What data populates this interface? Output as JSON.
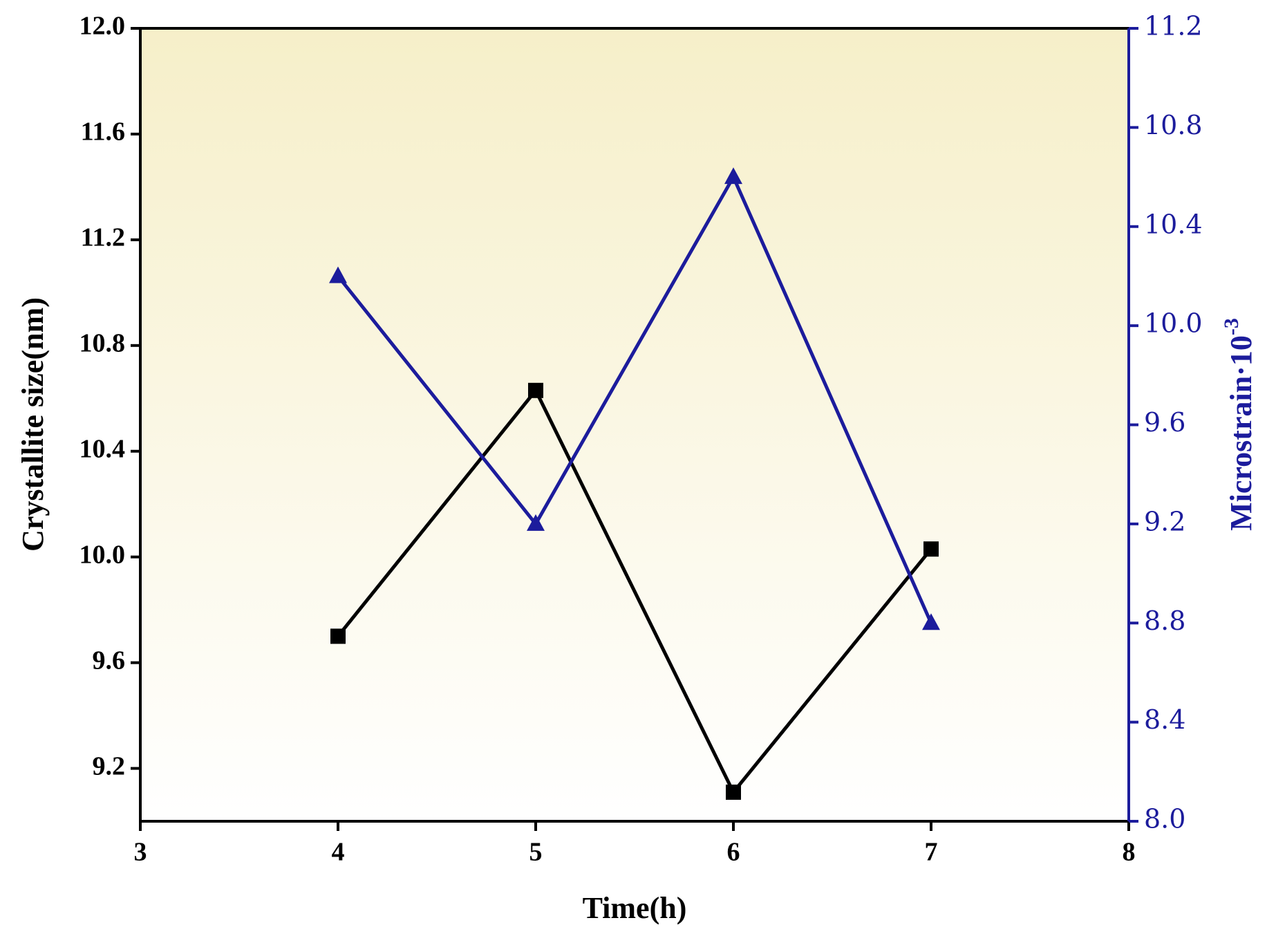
{
  "chart_data": {
    "type": "line",
    "xlabel": "Time(h)",
    "ylabel": "Crystallite size(nm)",
    "y2label": "Microstrain·10",
    "y2label_exponent": "-3",
    "xlim": [
      3,
      8
    ],
    "xticks": [
      3,
      4,
      5,
      6,
      7,
      8
    ],
    "ylim": [
      9.0,
      12.0
    ],
    "yticks": [
      9.2,
      9.6,
      {
        "value": 10,
        "label": "10.0"
      },
      10.4,
      10.8,
      11.2,
      11.6,
      {
        "value": 12,
        "label": "12.0"
      }
    ],
    "y2lim": [
      8.0,
      11.2
    ],
    "y2ticks": [
      {
        "value": 8,
        "label": "8.0"
      },
      8.4,
      8.8,
      9.2,
      9.6,
      {
        "value": 10,
        "label": "10.0"
      },
      10.4,
      10.8,
      11.2
    ],
    "x": [
      4,
      5,
      6,
      7
    ],
    "series": [
      {
        "name": "Crystallite size",
        "color": "#000000",
        "marker": "square",
        "values": [
          9.7,
          10.63,
          9.11,
          10.03
        ]
      },
      {
        "name": "Microstrain",
        "color": "#1c1c9c",
        "marker": "triangle",
        "axis": "y2",
        "values": [
          10.2,
          9.2,
          10.6,
          8.8
        ]
      }
    ]
  }
}
